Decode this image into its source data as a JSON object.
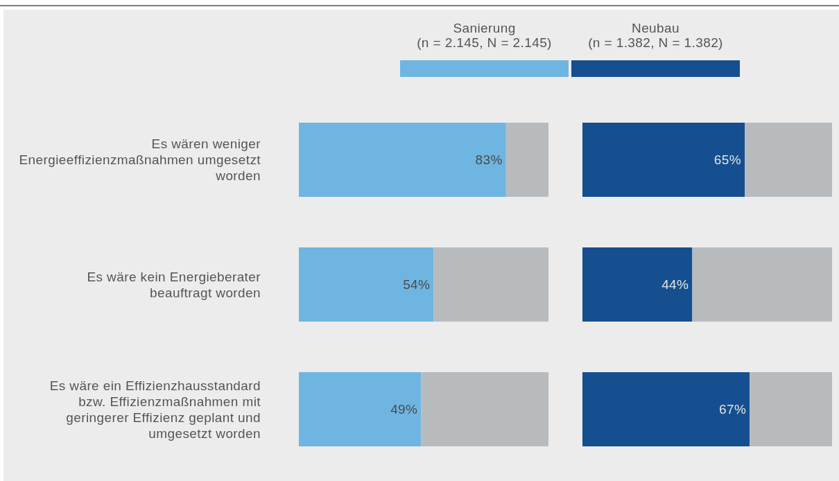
{
  "chart_data": [
    {
      "type": "bar",
      "orientation": "horizontal",
      "stacked": true,
      "categories": [
        "Es wären weniger\nEnergieeffizienzmaßnahmen umgesetzt\nworden",
        "Es wäre kein Energieberater\nbeauftragt worden",
        "Es wäre ein Effizienzhausstandard\nbzw. Effizienzmaßnahmen mit\ngeringerer Effizienz geplant und\numgesetzt worden"
      ],
      "series": [
        {
          "name": "Sanierung\n(n = 2.145, N = 2.145)",
          "color": "#6fb5e1",
          "values": [
            83,
            54,
            49
          ],
          "value_labels": [
            "83%",
            "54%",
            "49%"
          ]
        },
        {
          "color": "#b7bbbe",
          "values": [
            17,
            46,
            51
          ]
        }
      ],
      "xlim": [
        0,
        100
      ],
      "tick_labels": "y",
      "legend": "top"
    },
    {
      "type": "bar",
      "orientation": "horizontal",
      "stacked": true,
      "categories": [
        "Es wären weniger\nEnergieeffizienzmaßnahmen umgesetzt\nworden",
        "Es wäre kein Energieberater\nbeauftragt worden",
        "Es wäre ein Effizienzhausstandard\nbzw. Effizienzmaßnahmen mit\ngeringerer Effizienz geplant und\numgesetzt worden"
      ],
      "series": [
        {
          "name": "Neubau\n(n = 1.382, N = 1.382)",
          "color": "#154f8f",
          "values": [
            65,
            44,
            67
          ],
          "value_labels": [
            "65%",
            "44%",
            "67%"
          ]
        },
        {
          "color": "#b7bbbe",
          "values": [
            35,
            56,
            33
          ]
        }
      ],
      "xlim": [
        0,
        100
      ],
      "tick_labels": false,
      "legend": "top"
    }
  ]
}
